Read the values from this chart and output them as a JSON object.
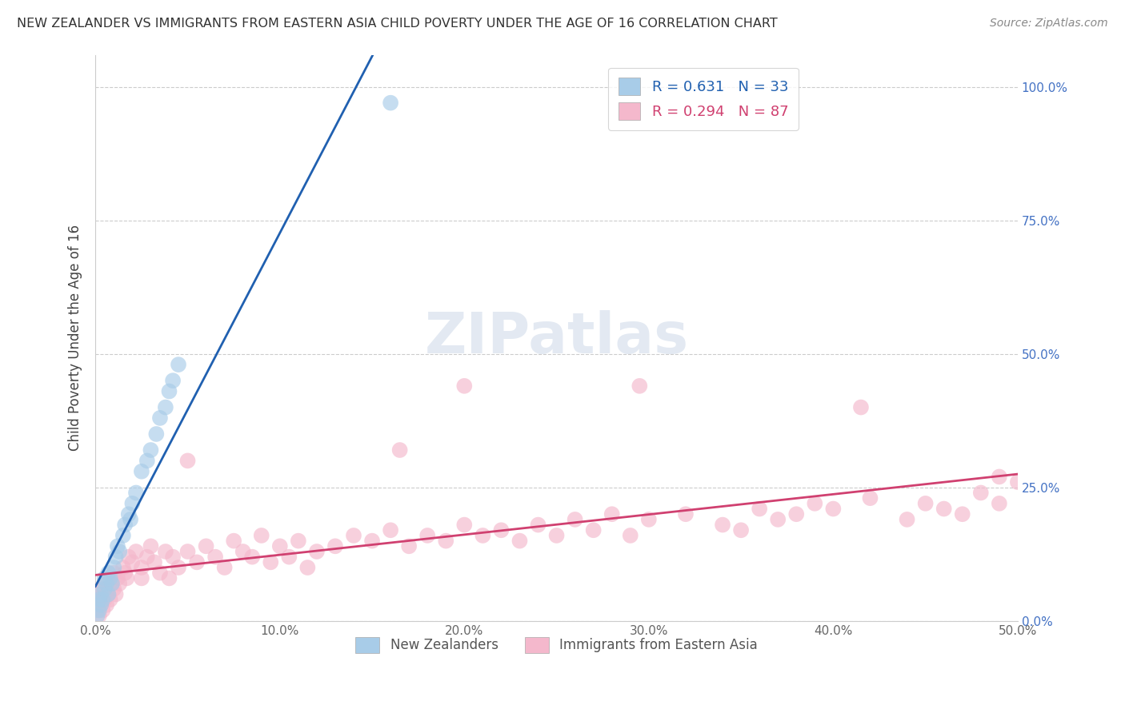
{
  "title": "NEW ZEALANDER VS IMMIGRANTS FROM EASTERN ASIA CHILD POVERTY UNDER THE AGE OF 16 CORRELATION CHART",
  "source": "Source: ZipAtlas.com",
  "ylabel": "Child Poverty Under the Age of 16",
  "R1": 0.631,
  "N1": 33,
  "R2": 0.294,
  "N2": 87,
  "color1": "#a8cce8",
  "color2": "#f4b8cc",
  "line_color1": "#2060b0",
  "line_color2": "#d04070",
  "legend_label1": "New Zealanders",
  "legend_label2": "Immigrants from Eastern Asia",
  "xlim": [
    0.0,
    0.5
  ],
  "ylim": [
    0.0,
    1.06
  ],
  "nz_x": [
    0.001,
    0.002,
    0.002,
    0.003,
    0.003,
    0.004,
    0.005,
    0.005,
    0.006,
    0.007,
    0.007,
    0.008,
    0.009,
    0.01,
    0.011,
    0.012,
    0.013,
    0.015,
    0.016,
    0.018,
    0.019,
    0.02,
    0.022,
    0.025,
    0.028,
    0.03,
    0.033,
    0.035,
    0.038,
    0.04,
    0.042,
    0.045,
    0.16
  ],
  "nz_y": [
    0.01,
    0.02,
    0.04,
    0.03,
    0.05,
    0.04,
    0.06,
    0.08,
    0.07,
    0.05,
    0.09,
    0.08,
    0.07,
    0.1,
    0.12,
    0.14,
    0.13,
    0.16,
    0.18,
    0.2,
    0.19,
    0.22,
    0.24,
    0.28,
    0.3,
    0.32,
    0.35,
    0.38,
    0.4,
    0.43,
    0.45,
    0.48,
    0.97
  ],
  "ea_x": [
    0.001,
    0.001,
    0.002,
    0.002,
    0.003,
    0.003,
    0.004,
    0.004,
    0.005,
    0.005,
    0.006,
    0.006,
    0.007,
    0.008,
    0.009,
    0.01,
    0.01,
    0.011,
    0.012,
    0.013,
    0.015,
    0.016,
    0.017,
    0.018,
    0.02,
    0.022,
    0.025,
    0.028,
    0.03,
    0.032,
    0.035,
    0.038,
    0.04,
    0.042,
    0.045,
    0.05,
    0.055,
    0.06,
    0.065,
    0.07,
    0.075,
    0.08,
    0.085,
    0.09,
    0.095,
    0.1,
    0.105,
    0.11,
    0.115,
    0.12,
    0.13,
    0.14,
    0.15,
    0.16,
    0.17,
    0.18,
    0.19,
    0.2,
    0.21,
    0.22,
    0.23,
    0.24,
    0.25,
    0.26,
    0.27,
    0.28,
    0.29,
    0.3,
    0.32,
    0.34,
    0.35,
    0.36,
    0.37,
    0.38,
    0.39,
    0.4,
    0.42,
    0.44,
    0.45,
    0.46,
    0.47,
    0.48,
    0.49,
    0.5,
    0.025,
    0.05,
    0.2
  ],
  "ea_y": [
    0.02,
    0.05,
    0.01,
    0.04,
    0.03,
    0.06,
    0.02,
    0.05,
    0.04,
    0.07,
    0.03,
    0.06,
    0.05,
    0.04,
    0.07,
    0.06,
    0.09,
    0.05,
    0.08,
    0.07,
    0.1,
    0.09,
    0.08,
    0.12,
    0.11,
    0.13,
    0.1,
    0.12,
    0.14,
    0.11,
    0.09,
    0.13,
    0.08,
    0.12,
    0.1,
    0.13,
    0.11,
    0.14,
    0.12,
    0.1,
    0.15,
    0.13,
    0.12,
    0.16,
    0.11,
    0.14,
    0.12,
    0.15,
    0.1,
    0.13,
    0.14,
    0.16,
    0.15,
    0.17,
    0.14,
    0.16,
    0.15,
    0.18,
    0.16,
    0.17,
    0.15,
    0.18,
    0.16,
    0.19,
    0.17,
    0.2,
    0.16,
    0.19,
    0.2,
    0.18,
    0.17,
    0.21,
    0.19,
    0.2,
    0.22,
    0.21,
    0.23,
    0.19,
    0.22,
    0.21,
    0.2,
    0.24,
    0.22,
    0.26,
    0.08,
    0.3,
    0.44
  ]
}
